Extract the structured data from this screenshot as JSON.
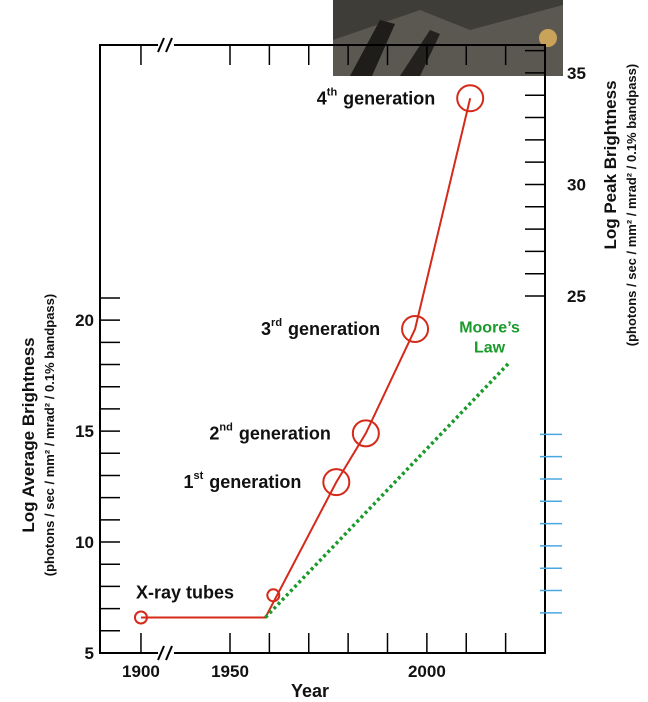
{
  "chart_data": {
    "type": "line",
    "x_label": "Year",
    "y_label": "Log Average Brightness",
    "y_units": "(photons / sec / mm² / mrad² / 0.1% bandpass)",
    "y2_label": "Log Peak Brightness",
    "y2_units": "(photons / sec / mm² / mrad² / 0.1% bandpass)",
    "xlim": [
      1877,
      2030
    ],
    "xticks": [
      1900,
      1950,
      2000
    ],
    "x_minor_ticks": [
      1960,
      1970,
      1980,
      1990,
      2010,
      2020
    ],
    "x_break": true,
    "ylim": [
      5,
      32.4
    ],
    "yticks": [
      5,
      10,
      15,
      20
    ],
    "y_minor_ticks": [
      6,
      7,
      8,
      9,
      11,
      12,
      13,
      14,
      16,
      17,
      18,
      19,
      21
    ],
    "y2lim": [
      9,
      36.25
    ],
    "y2ticks": [
      25,
      30,
      35
    ],
    "y2_minor_ticks": [
      26,
      27,
      28,
      29,
      31,
      32,
      33,
      34,
      36
    ],
    "y2_extra_ticks": {
      "color": "#4aa8e0",
      "values": [
        10.8,
        11.8,
        12.8,
        13.8,
        14.8,
        15.8,
        16.8,
        17.8,
        18.8
      ]
    },
    "series": [
      {
        "color": "#d42a1a",
        "x": [
          1900,
          1959,
          1977,
          1984.5,
          1997,
          2011
        ],
        "values": [
          6.6,
          6.6,
          12.7,
          14.9,
          19.6,
          30.0
        ]
      }
    ],
    "points": [
      {
        "x": 1900,
        "value": 6.6,
        "size": 6,
        "label": "X-ray tubes"
      },
      {
        "x": 1961,
        "value": 7.6,
        "size": 6
      },
      {
        "x": 1977,
        "value": 12.7,
        "size": 13,
        "ordinal": "1",
        "suffix": "st",
        "label": "generation"
      },
      {
        "x": 1984.5,
        "value": 14.9,
        "size": 13,
        "ordinal": "2",
        "suffix": "nd",
        "label": "generation"
      },
      {
        "x": 1997,
        "value": 19.6,
        "size": 13,
        "ordinal": "3",
        "suffix": "rd",
        "label": "generation"
      },
      {
        "x": 2011,
        "value": 30.0,
        "size": 13,
        "ordinal": "4",
        "suffix": "th",
        "label": "generation"
      }
    ],
    "trend": {
      "x": [
        1959,
        2021
      ],
      "values": [
        6.6,
        18.1
      ],
      "color": "#1a9a2a",
      "style": "dotted",
      "label": [
        "Moore’s",
        "Law"
      ]
    }
  }
}
